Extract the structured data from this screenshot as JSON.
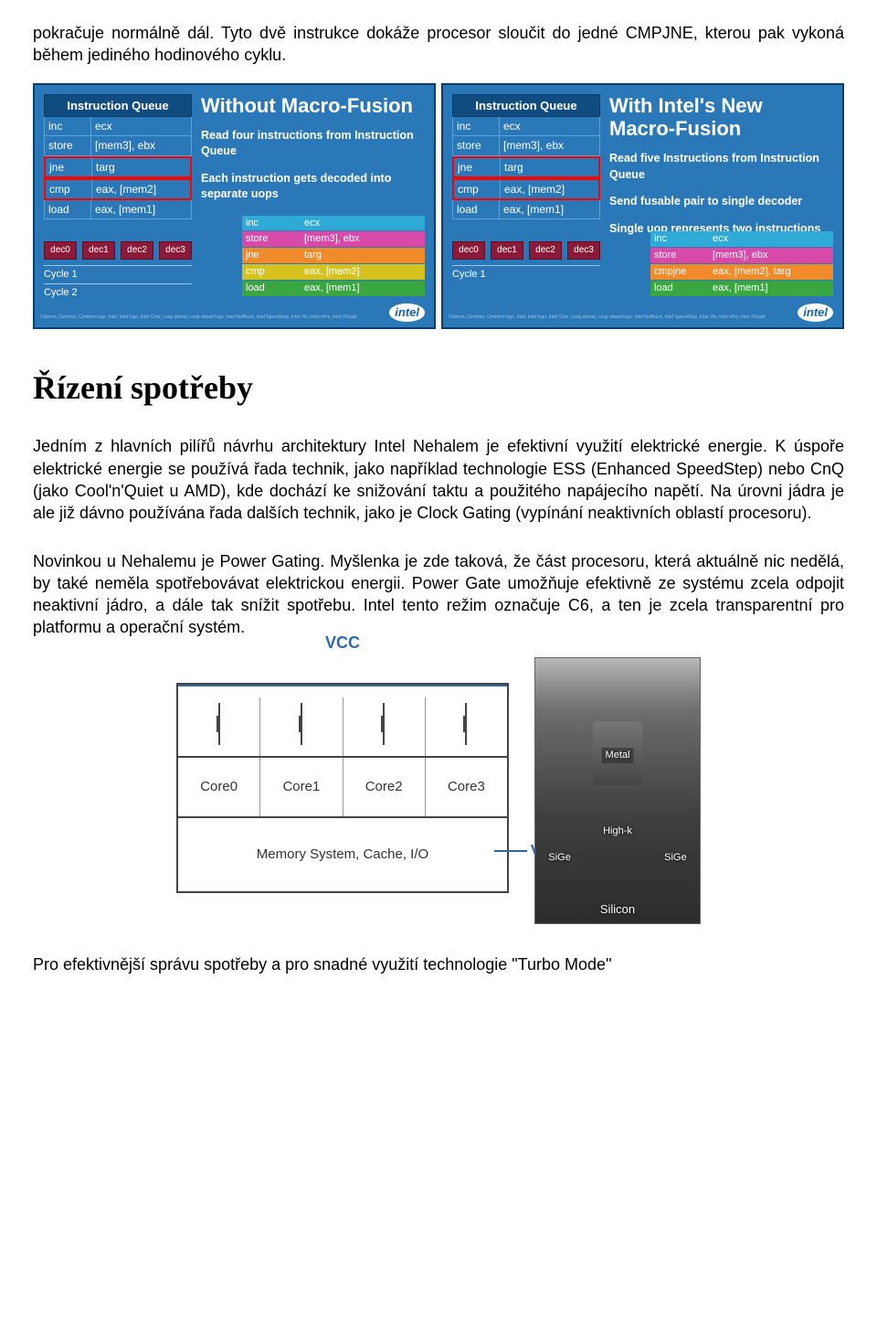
{
  "colors": {
    "panel_bg": "#2a78b8",
    "panel_border": "#0b3e6b",
    "iq_header_bg": "#114c80",
    "dec_bg": "#8b1a3a",
    "uop_inc": "#2fa9d6",
    "uop_store": "#d84aa8",
    "uop_jne": "#f08a2a",
    "uop_cmp": "#d6c21f",
    "uop_load": "#3aa63f",
    "vcc_color": "#2a6aa8"
  },
  "para_top": "pokračuje normálně dál. Tyto dvě instrukce dokáže procesor sloučit do jedné CMPJNE, kterou pak vykoná během jediného hodinového cyklu.",
  "fusion": {
    "iq_title": "Instruction Queue",
    "left": {
      "title": "Without Macro-Fusion",
      "desc1": "Read four instructions from Instruction Queue",
      "desc2": "Each instruction gets decoded into separate uops",
      "queue": [
        {
          "op": "inc",
          "args": "ecx"
        },
        {
          "op": "store",
          "args": "[mem3], ebx"
        },
        {
          "op": "jne",
          "args": "targ"
        },
        {
          "op": "cmp",
          "args": "eax, [mem2]"
        },
        {
          "op": "load",
          "args": "eax, [mem1]"
        }
      ],
      "decoders": [
        "dec0",
        "dec1",
        "dec2",
        "dec3"
      ],
      "cycles": [
        "Cycle 1",
        "Cycle 2"
      ],
      "uops": [
        {
          "cls": "uop-inc",
          "c1": "inc",
          "c2": "ecx"
        },
        {
          "cls": "uop-store",
          "c1": "store",
          "c2": "[mem3], ebx"
        },
        {
          "cls": "uop-jne",
          "c1": "jne",
          "c2": "targ"
        },
        {
          "cls": "uop-cmp",
          "c1": "cmp",
          "c2": "eax, [mem2]"
        },
        {
          "cls": "uop-load",
          "c1": "load",
          "c2": "eax, [mem1]"
        }
      ]
    },
    "right": {
      "title": "With Intel's New Macro-Fusion",
      "desc1": "Read five Instructions from Instruction Queue",
      "desc2": "Send fusable pair to single decoder",
      "desc3": "Single uop represents two instructions",
      "queue": [
        {
          "op": "inc",
          "args": "ecx"
        },
        {
          "op": "store",
          "args": "[mem3], ebx"
        },
        {
          "op": "jne",
          "args": "targ"
        },
        {
          "op": "cmp",
          "args": "eax, [mem2]"
        },
        {
          "op": "load",
          "args": "eax, [mem1]"
        }
      ],
      "decoders": [
        "dec0",
        "dec1",
        "dec2",
        "dec3"
      ],
      "cycles": [
        "Cycle 1"
      ],
      "uops": [
        {
          "cls": "uop-inc",
          "c1": "inc",
          "c2": "ecx"
        },
        {
          "cls": "uop-store",
          "c1": "store",
          "c2": "[mem3], ebx"
        },
        {
          "cls": "uop-fused",
          "c1": "cmpjne",
          "c2": "eax, [mem2], targ"
        },
        {
          "cls": "uop-load",
          "c1": "load",
          "c2": "eax, [mem1]"
        }
      ]
    }
  },
  "section_title": "Řízení spotřeby",
  "para_1": "Jedním z hlavních pilířů návrhu architektury Intel Nehalem je efektivní využití elektrické energie. K úspoře elektrické energie se používá řada technik, jako například technologie ESS (Enhanced SpeedStep) nebo CnQ (jako Cool'n'Quiet u AMD), kde dochází ke snižování taktu a použitého napájecího napětí. Na úrovni jádra je ale již dávno používána řada dalších technik, jako je Clock Gating (vypínání neaktivních oblastí procesoru).",
  "para_2": "Novinkou u Nehalemu je Power Gating. Myšlenka je zde taková, že část procesoru, která aktuálně nic nedělá, by také neměla spotřebovávat elektrickou energii. Power Gate umožňuje efektivně ze systému zcela odpojit neaktivní jádro, a dále tak snížit spotřebu. Intel tento režim označuje C6, a ten je zcela transparentní pro platformu a operační systém.",
  "power_gate": {
    "vcc": "VCC",
    "cores": [
      "Core0",
      "Core1",
      "Core2",
      "Core3"
    ],
    "mem": "Memory System, Cache, I/O",
    "vtt": "VTT"
  },
  "die": {
    "metal": "Metal",
    "highk": "High-k",
    "sige": "SiGe",
    "silicon": "Silicon"
  },
  "para_last": "Pro efektivnější správu spotřeby a pro snadné využití technologie \"Turbo Mode\""
}
